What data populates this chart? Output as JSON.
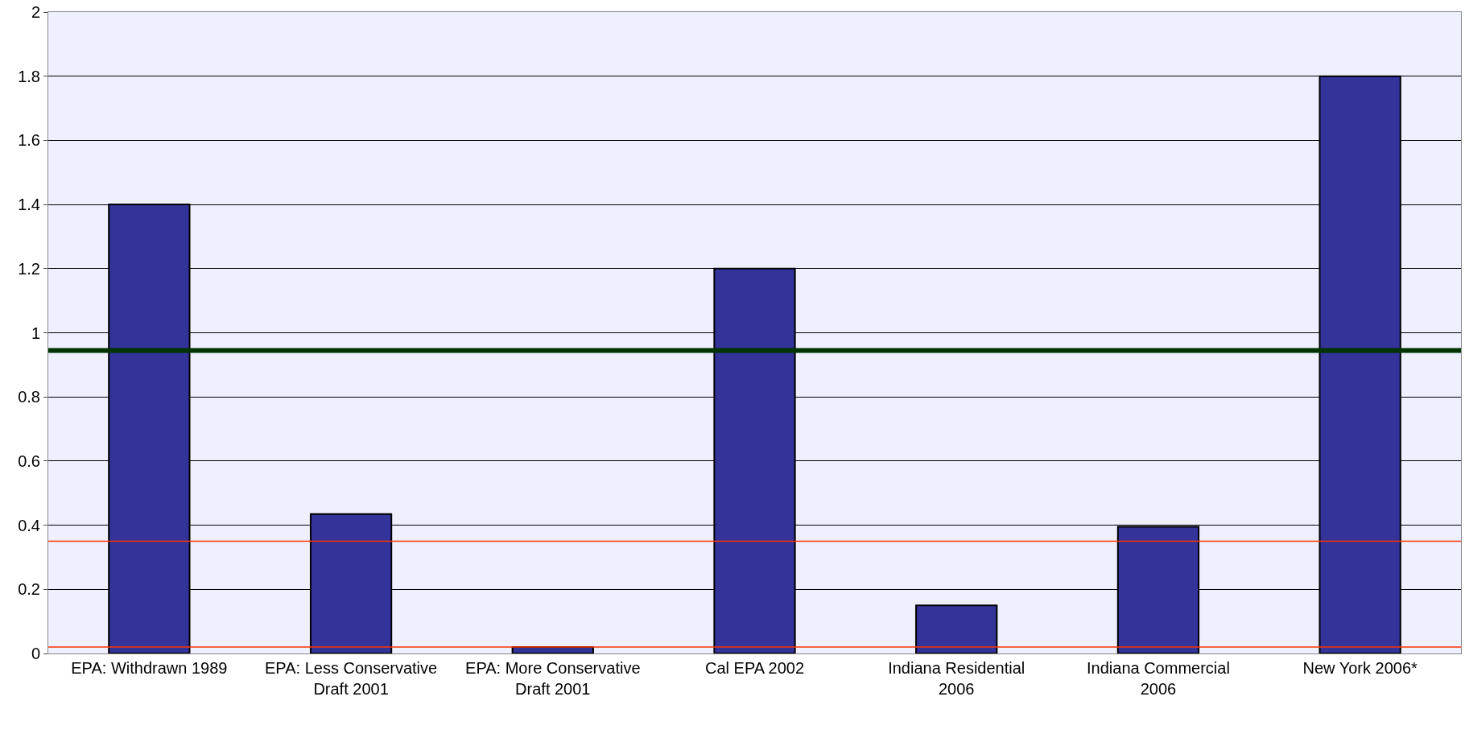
{
  "chart_data": {
    "type": "bar",
    "categories": [
      "EPA: Withdrawn 1989",
      "EPA: Less Conservative Draft 2001",
      "EPA: More Conservative Draft 2001",
      "Cal EPA 2002",
      "Indiana Residential 2006",
      "Indiana Commercial 2006",
      "New York 2006*"
    ],
    "values": [
      1.4,
      0.435,
      0.02,
      1.2,
      0.15,
      0.395,
      1.8
    ],
    "color": "#333399",
    "ylim": [
      0,
      2
    ],
    "yticks": [
      0,
      0.2,
      0.4,
      0.6,
      0.8,
      1,
      1.2,
      1.4,
      1.6,
      1.8,
      2
    ],
    "grid": "y",
    "legend": false,
    "ref_lines": [
      {
        "axis": "y",
        "value": 0.945,
        "color": "#003300",
        "line_style": "solid"
      },
      {
        "axis": "y",
        "value": 0.35,
        "color": "#ff3300",
        "line_style": "solid"
      },
      {
        "axis": "y",
        "value": 0.02,
        "color": "#ff3300",
        "line_style": "solid"
      }
    ]
  }
}
